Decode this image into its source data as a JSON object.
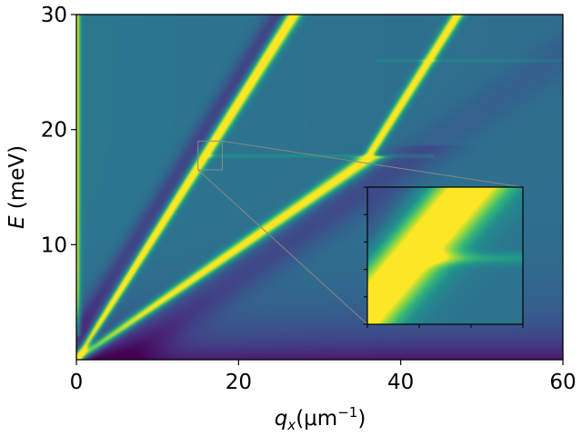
{
  "chart_data": {
    "type": "heatmap",
    "title": "",
    "xlabel": {
      "main": "q",
      "sub": "x",
      "unit_open": "(μm",
      "unit_sup": "−1",
      "unit_close": ")"
    },
    "ylabel": {
      "main": "E",
      "unit": " (meV)"
    },
    "xlim": [
      0,
      60
    ],
    "ylim": [
      0,
      30
    ],
    "xticks": [
      0,
      20,
      40,
      60
    ],
    "xtick_labels": [
      "0",
      "20",
      "40",
      "60"
    ],
    "yticks": [
      10,
      20,
      30
    ],
    "ytick_labels": [
      "10",
      "20",
      "30"
    ],
    "colormap": "viridis",
    "grid": false,
    "features": {
      "steep_branch_slope_meV_per_um": 1.12,
      "shallow_branch_slope_meV_per_um": 0.485,
      "anticrossing_energy_meV": 17.7,
      "anticrossing_q_um": 36.5,
      "flat_mode_energy_meV": 17.7,
      "flat_mode_q_range": [
        16,
        44
      ],
      "faint_flat_mode_energy_meV": 26.0,
      "faint_flat_mode_q_range": [
        37,
        60
      ]
    },
    "inset": {
      "zoom_xlim": [
        15,
        18
      ],
      "zoom_ylim": [
        16.5,
        19.0
      ],
      "location": "lower-right",
      "tick_labels_shown": false
    }
  }
}
